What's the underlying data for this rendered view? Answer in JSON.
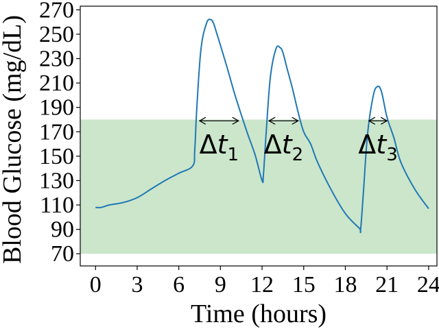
{
  "chart_data": {
    "type": "line",
    "xlabel": "Time (hours)",
    "ylabel": "Blood Glucose (mg/dL)",
    "xlim": [
      -1.1,
      24.6
    ],
    "ylim": [
      60,
      273
    ],
    "xticks": [
      0,
      3,
      6,
      9,
      12,
      15,
      18,
      21,
      24
    ],
    "yticks": [
      70,
      90,
      110,
      130,
      150,
      170,
      190,
      210,
      230,
      250,
      270
    ],
    "target_range": {
      "low": 70,
      "high": 180,
      "color": "#a9d5a9"
    },
    "series": [
      {
        "color": "#1f77b4",
        "x": [
          0,
          0.4,
          1,
          2,
          3,
          4,
          5,
          6,
          7,
          7.15,
          7.3,
          7.6,
          8,
          8.3,
          8.5,
          8.7,
          9,
          9.5,
          10,
          10.5,
          11,
          11.5,
          12,
          12.1,
          12.3,
          12.6,
          13,
          13.3,
          13.5,
          13.8,
          14.2,
          14.6,
          15,
          15.5,
          16,
          17,
          18,
          19,
          19.1,
          19.3,
          19.6,
          20,
          20.3,
          20.6,
          21,
          21.5,
          22,
          23,
          24
        ],
        "y": [
          108,
          108,
          110,
          112,
          116,
          123,
          130,
          136,
          142,
          155,
          190,
          238,
          259,
          262,
          259,
          252,
          241,
          222,
          202,
          184,
          167,
          151,
          130,
          135,
          170,
          215,
          238,
          239,
          235,
          222,
          205,
          186,
          170,
          160,
          145,
          122,
          103,
          91,
          90,
          120,
          168,
          199,
          207,
          203,
          182,
          165,
          145,
          123,
          107
        ]
      }
    ],
    "annotations": [
      {
        "symbol": "Δ",
        "var": "t",
        "sub": "1",
        "x1": 7.5,
        "x2": 10.3,
        "y": 179,
        "label_y": 160
      },
      {
        "symbol": "Δ",
        "var": "t",
        "sub": "2",
        "x1": 12.5,
        "x2": 14.6,
        "y": 179,
        "label_y": 160
      },
      {
        "symbol": "Δ",
        "var": "t",
        "sub": "3",
        "x1": 19.7,
        "x2": 21.0,
        "y": 179,
        "label_y": 160
      }
    ]
  }
}
